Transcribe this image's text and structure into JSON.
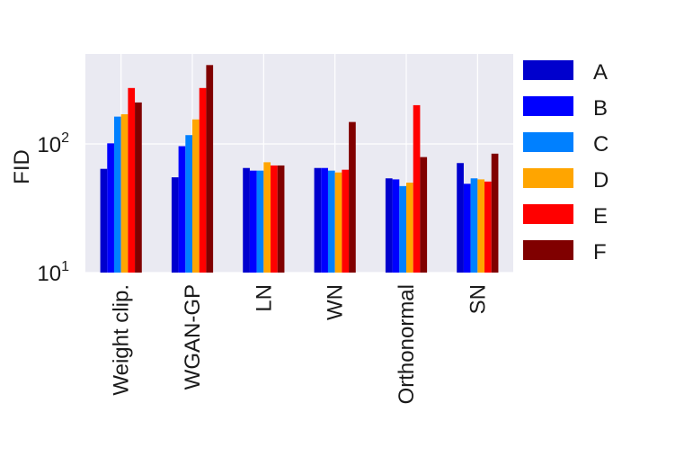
{
  "chart_data": {
    "type": "bar",
    "title": "",
    "xlabel": "",
    "ylabel": "FID",
    "yscale": "log",
    "ylim": [
      10,
      500
    ],
    "yticks": [
      {
        "value": 10,
        "base": "10",
        "exp": "1"
      },
      {
        "value": 100,
        "base": "10",
        "exp": "2"
      }
    ],
    "grid": true,
    "legend_position": "right",
    "categories": [
      "Weight clip.",
      "WGAN-GP",
      "LN",
      "WN",
      "Orthonormal",
      "SN"
    ],
    "series": [
      {
        "name": "A",
        "color": "#0000cd",
        "values": [
          64,
          55,
          65,
          65,
          54,
          71
        ]
      },
      {
        "name": "B",
        "color": "#0000ff",
        "values": [
          101,
          96,
          62,
          65,
          53,
          49
        ]
      },
      {
        "name": "C",
        "color": "#0080ff",
        "values": [
          163,
          117,
          62,
          62,
          47,
          54
        ]
      },
      {
        "name": "D",
        "color": "#ffa500",
        "values": [
          170,
          155,
          72,
          60,
          50,
          53
        ]
      },
      {
        "name": "E",
        "color": "#ff0000",
        "values": [
          272,
          272,
          68,
          63,
          200,
          51
        ]
      },
      {
        "name": "F",
        "color": "#800000",
        "values": [
          210,
          410,
          68,
          148,
          79,
          84
        ]
      }
    ]
  }
}
